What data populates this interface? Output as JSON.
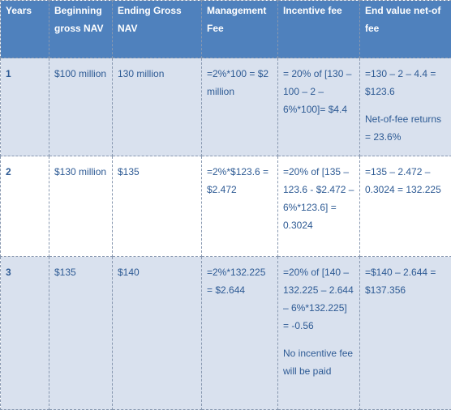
{
  "headers": [
    "Years",
    "Beginning gross NAV",
    "Ending Gross NAV",
    "Management Fee",
    "Incentive fee",
    "End value net-of fee"
  ],
  "rows": [
    {
      "year": "1",
      "beginning": "$100 million",
      "ending": "130  million",
      "mgmt_fee": "=2%*100 = $2 million",
      "incentive": "= 20% of [130 – 100 – 2 – 6%*100]= $4.4",
      "end_value": "=130 – 2 – 4.4 = $123.6",
      "end_value_note": "Net-of-fee returns = 23.6%"
    },
    {
      "year": "2",
      "beginning": "$130 million",
      "ending": "$135",
      "mgmt_fee": "=2%*$123.6 = $2.472",
      "incentive": "=20% of [135 – 123.6 - $2.472 – 6%*123.6] = 0.3024",
      "end_value": "=135 – 2.472 – 0.3024 = 132.225"
    },
    {
      "year": "3",
      "beginning": "$135",
      "ending": "$140",
      "mgmt_fee": "=2%*132.225 = $2.644",
      "incentive": "=20% of [140 – 132.225 – 2.644 – 6%*132.225] = -0.56",
      "incentive_note": "No incentive fee will be paid",
      "end_value": "=$140 – 2.644 = $137.356"
    }
  ]
}
